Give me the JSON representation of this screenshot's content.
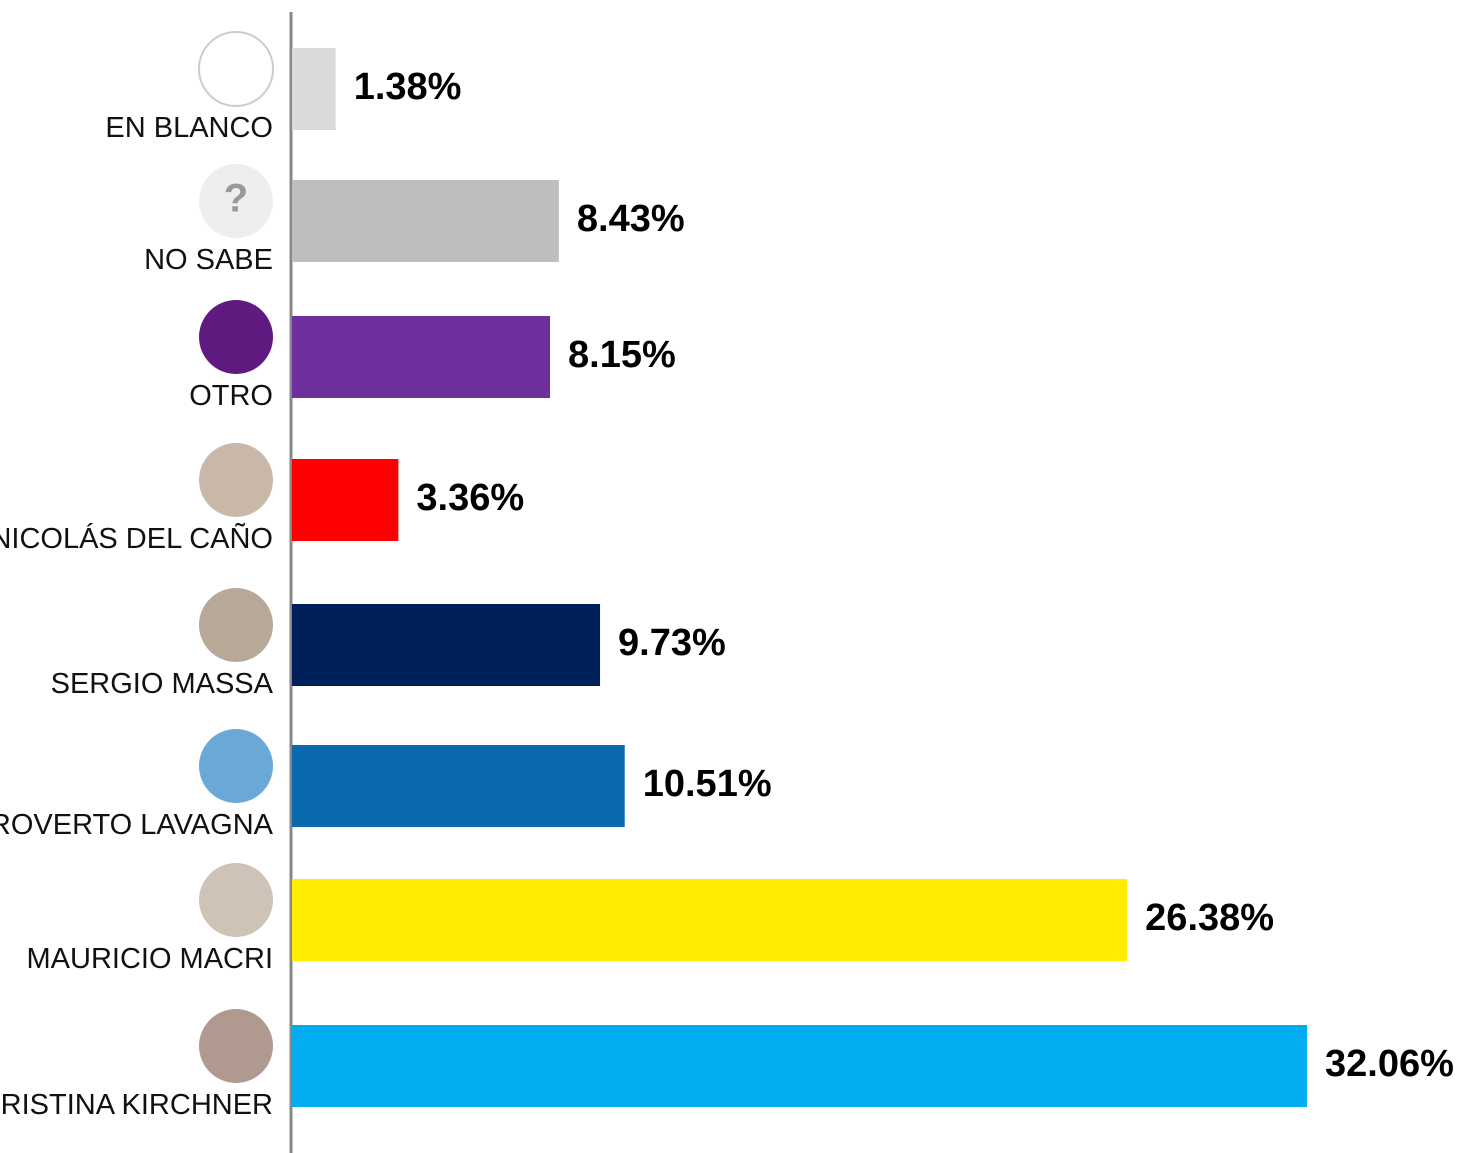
{
  "chart_data": {
    "type": "bar",
    "orientation": "horizontal",
    "categories": [
      "EN BLANCO",
      "NO SABE",
      "OTRO",
      "NICOLÁS DEL CAÑO",
      "SERGIO MASSA",
      "ROVERTO LAVAGNA",
      "MAURICIO MACRI",
      "CRISTINA KIRCHNER"
    ],
    "values": [
      1.38,
      8.43,
      8.15,
      3.36,
      9.73,
      10.51,
      26.38,
      32.06
    ],
    "value_labels": [
      "1.38%",
      "8.43%",
      "8.15%",
      "3.36%",
      "9.73%",
      "10.51%",
      "26.38%",
      "32.06%"
    ],
    "colors": [
      "#dadada",
      "#bebebe",
      "#6e2f9c",
      "#ff0000",
      "#00205b",
      "#0b6aae",
      "#ffec00",
      "#00aeef"
    ],
    "annotations": [
      "?"
    ]
  }
}
